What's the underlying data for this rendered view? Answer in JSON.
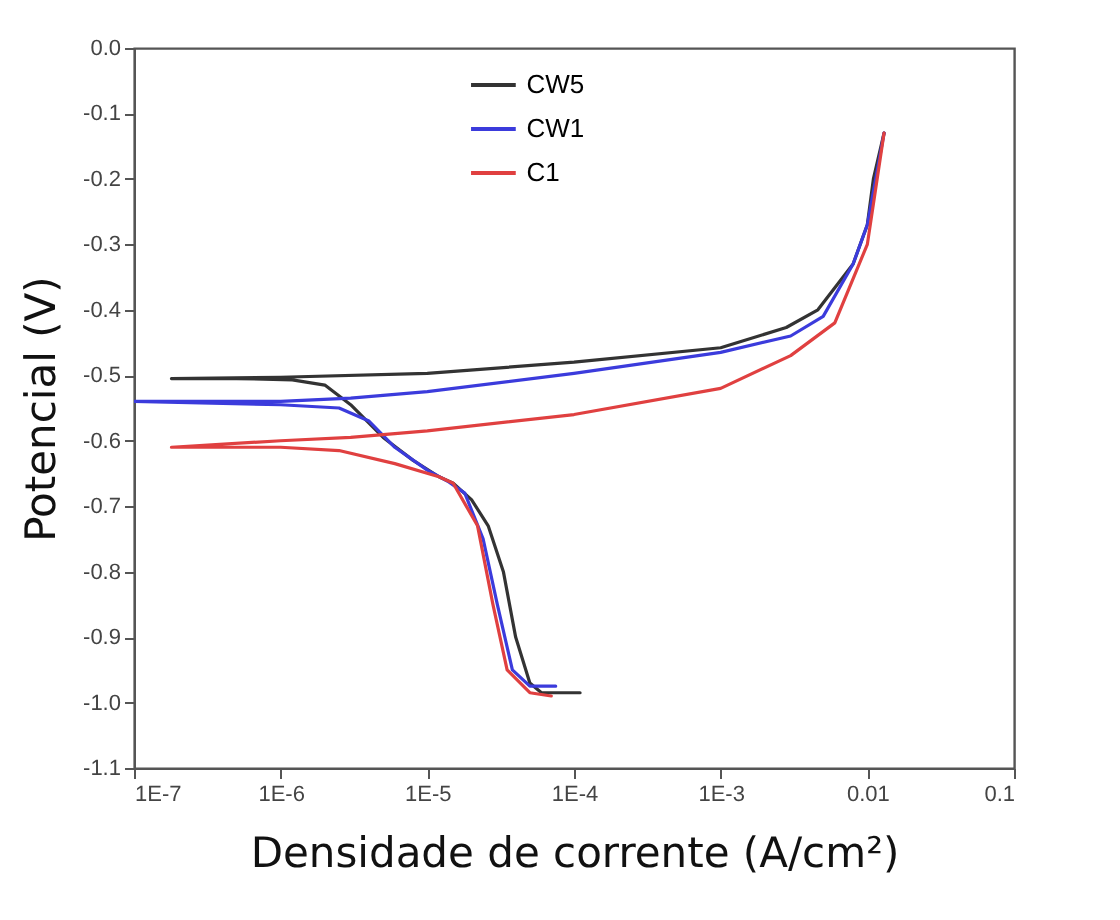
{
  "chart_data": {
    "type": "line",
    "xlabel": "Densidade de corrente (A/cm²)",
    "ylabel": "Potencial (V)",
    "log": "x",
    "xlim": [
      1e-07,
      0.1
    ],
    "ylim": [
      -1.1,
      0
    ],
    "xticks": [
      {
        "value": 1e-07,
        "label": "1E-7"
      },
      {
        "value": 1e-06,
        "label": "1E-6"
      },
      {
        "value": 1e-05,
        "label": "1E-5"
      },
      {
        "value": 0.0001,
        "label": "1E-4"
      },
      {
        "value": 0.001,
        "label": "1E-3"
      },
      0.01,
      0.1
    ],
    "yticks": [
      {
        "value": -1.1,
        "label": "-1.1"
      },
      {
        "value": -1.0,
        "label": "-1.0"
      },
      -0.9,
      -0.8,
      -0.7,
      -0.6,
      -0.5,
      -0.4,
      -0.3,
      -0.2,
      -0.1,
      {
        "value": 0,
        "label": "0.0"
      }
    ],
    "grid": false,
    "legend": "top",
    "marker": "none",
    "line_style": "solid",
    "series": [
      {
        "name": "CW5",
        "color": "#333333",
        "x": [
          0.00011,
          6e-05,
          5e-05,
          4e-05,
          3.3e-05,
          2.6e-05,
          2e-05,
          1.5e-05,
          1.2e-05,
          8e-06,
          5e-06,
          3e-06,
          2e-06,
          1.2e-06,
          5e-07,
          1.8e-07,
          1e-06,
          1e-05,
          0.0001,
          0.001,
          0.0028,
          0.0046,
          0.008,
          0.01,
          0.011,
          0.013
        ],
        "values": [
          -0.985,
          -0.985,
          -0.97,
          -0.9,
          -0.8,
          -0.73,
          -0.69,
          -0.665,
          -0.655,
          -0.63,
          -0.595,
          -0.545,
          -0.515,
          -0.507,
          -0.505,
          -0.505,
          -0.503,
          -0.497,
          -0.48,
          -0.458,
          -0.427,
          -0.4,
          -0.33,
          -0.27,
          -0.2,
          -0.13
        ]
      },
      {
        "name": "CW1",
        "color": "#3b3bdc",
        "x": [
          7.5e-05,
          5e-05,
          3.8e-05,
          3e-05,
          2.4e-05,
          1.8e-05,
          1.4e-05,
          1e-05,
          6e-06,
          4e-06,
          2.5e-06,
          1e-06,
          1e-07,
          1e-06,
          3e-06,
          1e-05,
          0.0001,
          0.001,
          0.003,
          0.005,
          0.008,
          0.01,
          0.013
        ],
        "values": [
          -0.975,
          -0.975,
          -0.95,
          -0.85,
          -0.75,
          -0.68,
          -0.663,
          -0.645,
          -0.61,
          -0.57,
          -0.55,
          -0.545,
          -0.54,
          -0.54,
          -0.535,
          -0.525,
          -0.497,
          -0.465,
          -0.44,
          -0.41,
          -0.33,
          -0.27,
          -0.13
        ]
      },
      {
        "name": "C1",
        "color": "#e04040",
        "x": [
          7e-05,
          5e-05,
          3.5e-05,
          2.8e-05,
          2.2e-05,
          1.5e-05,
          1.2e-05,
          6e-06,
          2.5e-06,
          1e-06,
          1.8e-07,
          1e-06,
          3e-06,
          1e-05,
          0.0001,
          0.001,
          0.003,
          0.006,
          0.01,
          0.013
        ],
        "values": [
          -0.99,
          -0.985,
          -0.95,
          -0.85,
          -0.73,
          -0.665,
          -0.655,
          -0.635,
          -0.615,
          -0.61,
          -0.61,
          -0.6,
          -0.595,
          -0.585,
          -0.56,
          -0.52,
          -0.47,
          -0.42,
          -0.3,
          -0.13
        ]
      }
    ]
  }
}
